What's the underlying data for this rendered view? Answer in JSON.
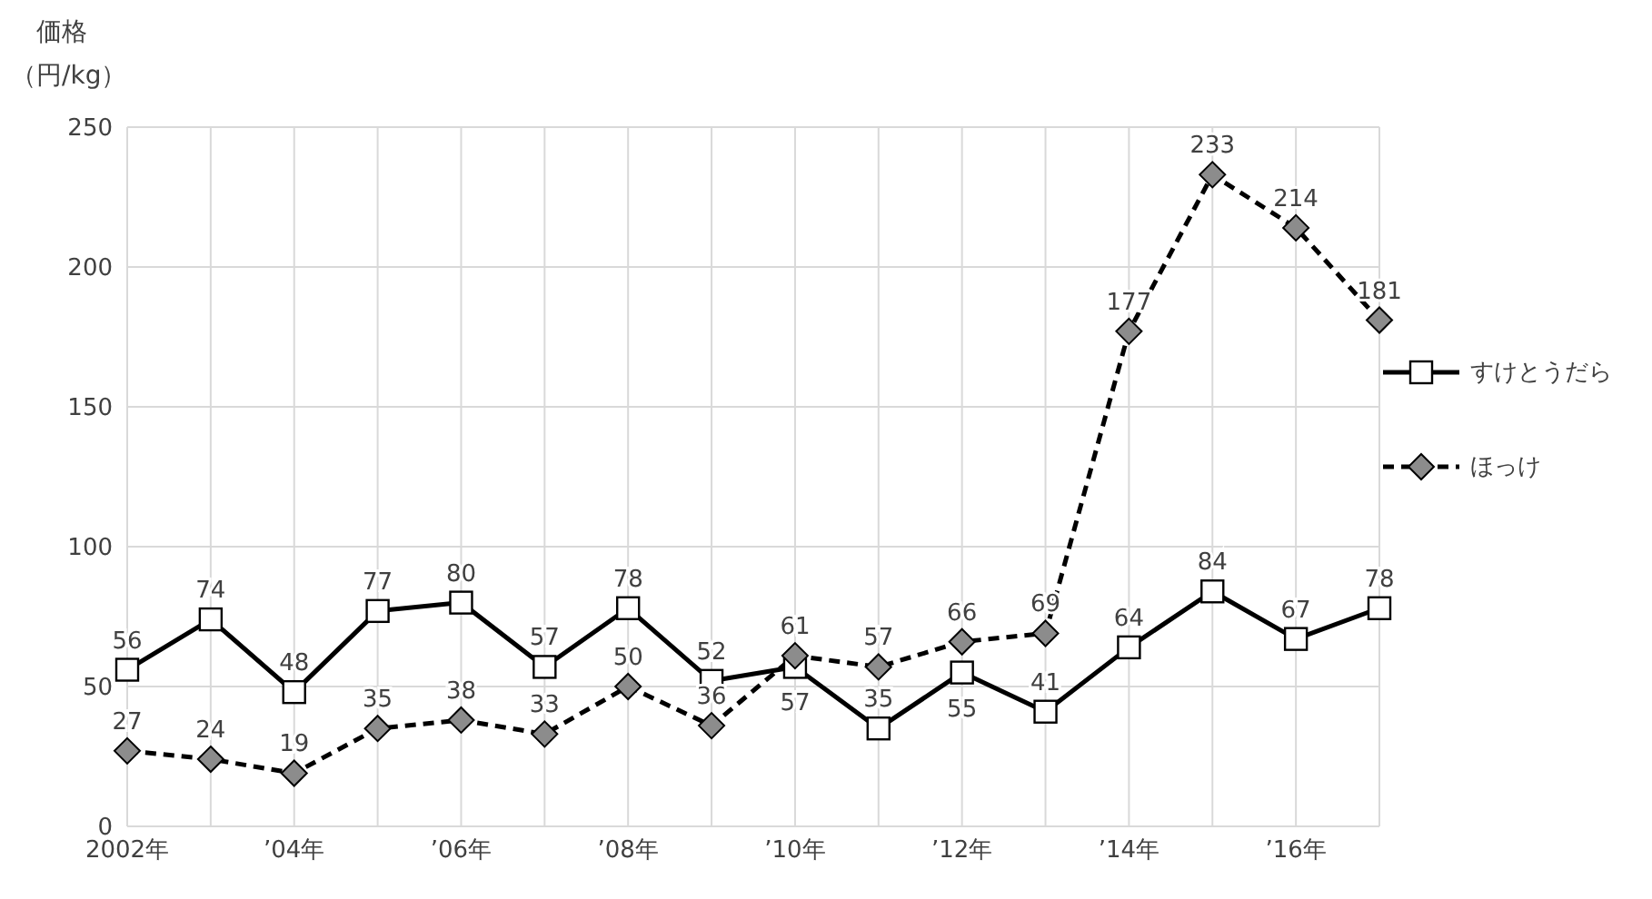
{
  "chart_data": {
    "type": "line",
    "ylabel": "価格（円/kg）",
    "categories": [
      "2002年",
      null,
      "’04年",
      null,
      "’06年",
      null,
      "’08年",
      null,
      "’10年",
      null,
      "’12年",
      null,
      "’14年",
      null,
      "’16年",
      null
    ],
    "series": [
      {
        "name": "すけとうだら",
        "color": "#000000",
        "marker": "square",
        "line_style": "solid",
        "values": [
          56,
          74,
          48,
          77,
          80,
          57,
          78,
          52,
          57,
          35,
          55,
          41,
          64,
          84,
          67,
          78
        ]
      },
      {
        "name": "ほっけ",
        "color": "#000000",
        "marker": "diamond",
        "line_style": "dashed",
        "values": [
          27,
          24,
          19,
          35,
          38,
          33,
          50,
          36,
          61,
          57,
          66,
          69,
          177,
          233,
          214,
          181
        ]
      }
    ],
    "ylim": [
      0,
      250
    ],
    "yticks": [
      0,
      50,
      100,
      150,
      200,
      250
    ],
    "grid": true,
    "legend": "right",
    "data_labels": true
  }
}
